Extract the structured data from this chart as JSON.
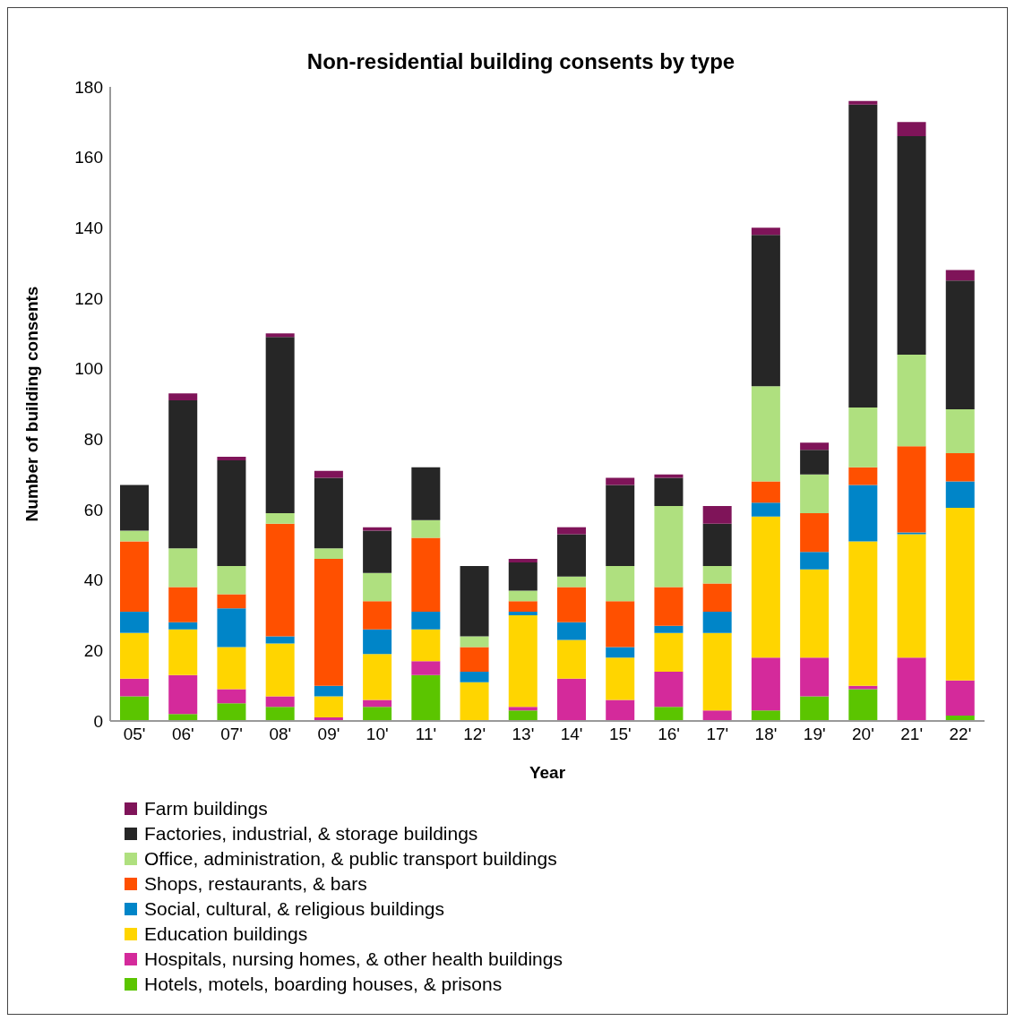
{
  "chart_data": {
    "type": "bar",
    "title": "Non-residential building consents by type",
    "xlabel": "Year",
    "ylabel": "Number of building consents",
    "categories": [
      "05'",
      "06'",
      "07'",
      "08'",
      "09'",
      "10'",
      "11'",
      "12'",
      "13'",
      "14'",
      "15'",
      "16'",
      "17'",
      "18'",
      "19'",
      "20'",
      "21'",
      "22'"
    ],
    "stacked": true,
    "ylim": [
      0,
      180
    ],
    "yticks": [
      0,
      20,
      40,
      60,
      80,
      100,
      120,
      140,
      160,
      180
    ],
    "legend": "bottom",
    "series": [
      {
        "name": "Hotels, motels, boarding houses, & prisons",
        "color": "#5bc500",
        "values": [
          7,
          2,
          5,
          4,
          0,
          4,
          13,
          0,
          3,
          0,
          0,
          4,
          0,
          3,
          7,
          9,
          0,
          1.5
        ]
      },
      {
        "name": "Hospitals, nursing homes, & other health buildings",
        "color": "#d42a9b",
        "values": [
          5,
          11,
          4,
          3,
          1,
          2,
          4,
          0,
          1,
          12,
          6,
          10,
          3,
          15,
          11,
          1,
          18,
          10
        ]
      },
      {
        "name": "Education buildings",
        "color": "#ffd500",
        "values": [
          13,
          13,
          12,
          15,
          6,
          13,
          9,
          11,
          26,
          11,
          12,
          11,
          22,
          40,
          25,
          41,
          35,
          49
        ]
      },
      {
        "name": "Social, cultural, & religious buildings",
        "color": "#0085c8",
        "values": [
          6,
          2,
          11,
          2,
          3,
          7,
          5,
          3,
          1,
          5,
          3,
          2,
          6,
          4,
          5,
          16,
          0.5,
          7.5
        ]
      },
      {
        "name": "Shops, restaurants, & bars",
        "color": "#ff5000",
        "values": [
          20,
          10,
          4,
          32,
          36,
          8,
          21,
          7,
          3,
          10,
          13,
          11,
          8,
          6,
          11,
          5,
          24.5,
          8
        ]
      },
      {
        "name": "Office, administration, & public transport buildings",
        "color": "#afe07f",
        "values": [
          3,
          11,
          8,
          3,
          3,
          8,
          5,
          3,
          3,
          3,
          10,
          23,
          5,
          27,
          11,
          17,
          26,
          12.5
        ]
      },
      {
        "name": "Factories, industrial, & storage buildings",
        "color": "#262626",
        "values": [
          13,
          42,
          30,
          50,
          20,
          12,
          15,
          20,
          8,
          12,
          23,
          8,
          12,
          43,
          7,
          86,
          62,
          36.5
        ]
      },
      {
        "name": "Farm buildings",
        "color": "#7f1459",
        "values": [
          0,
          2,
          1,
          1,
          2,
          1,
          0,
          0,
          1,
          2,
          2,
          1,
          5,
          2,
          2,
          1,
          4,
          3
        ]
      }
    ]
  }
}
